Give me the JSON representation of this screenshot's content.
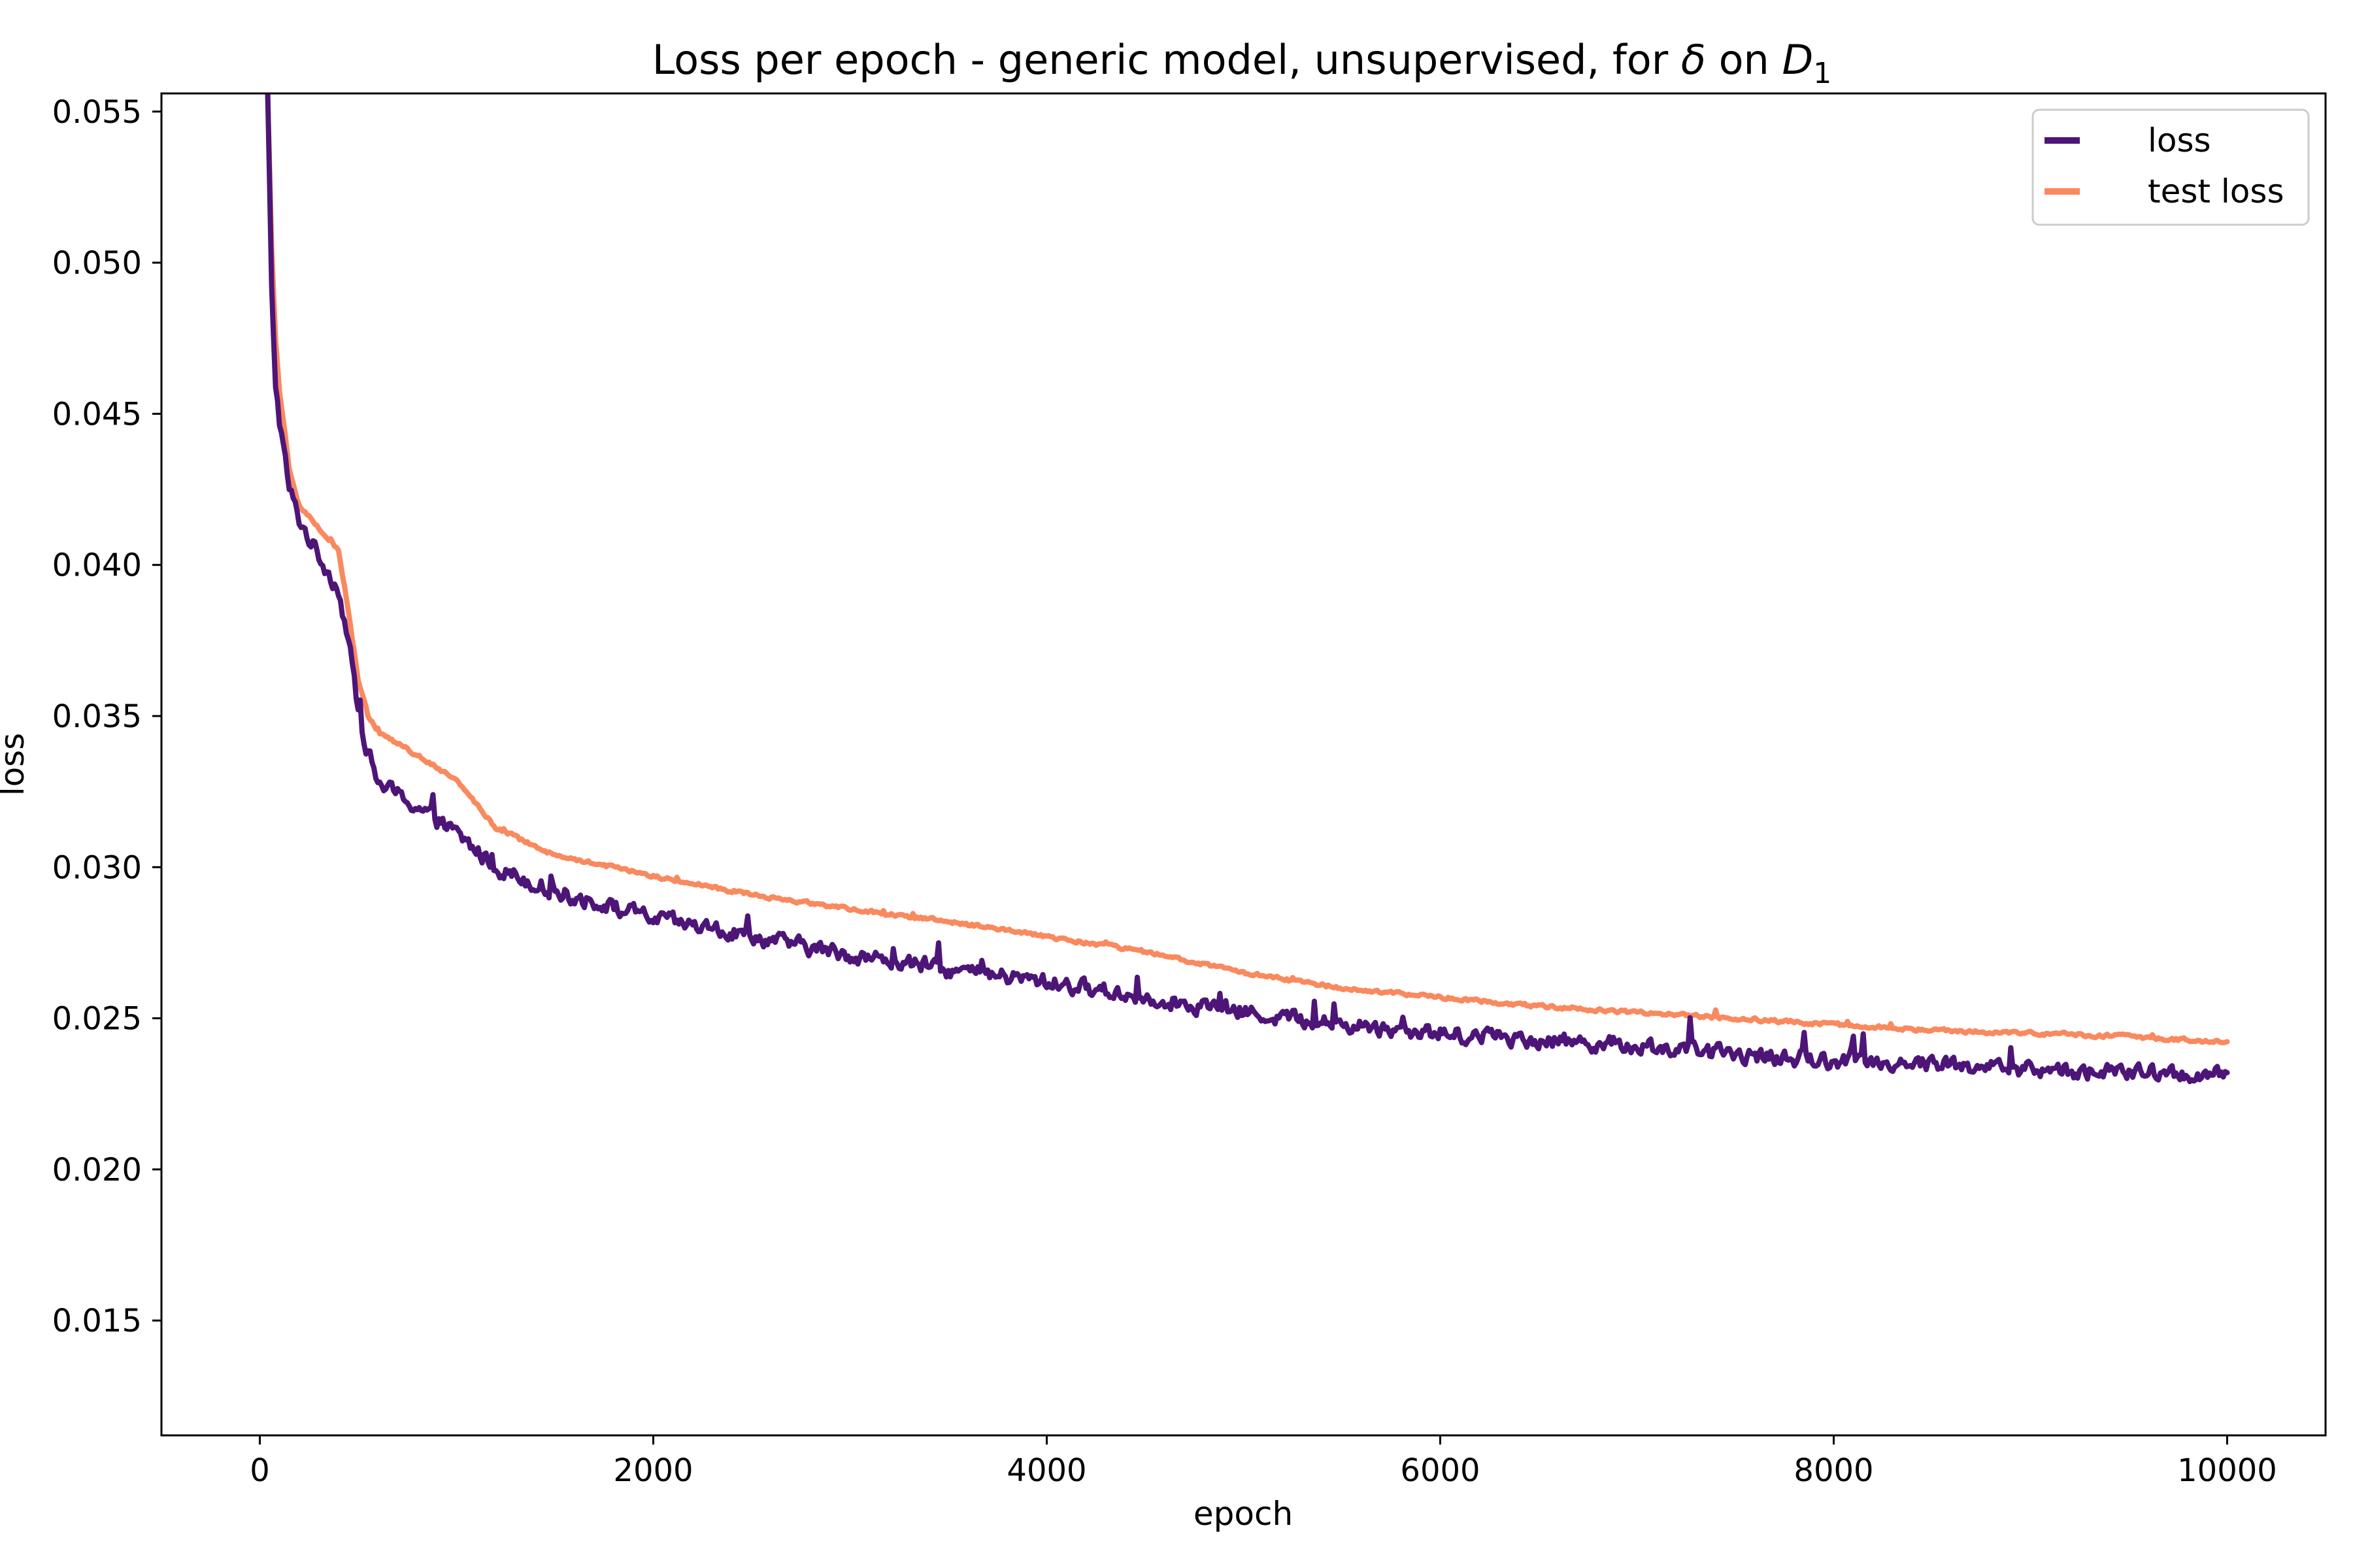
{
  "chart_data": {
    "type": "line",
    "title": "Loss per epoch - generic model, unsupervised, for δ on D",
    "title_subscript": "1",
    "xlabel": "epoch",
    "ylabel": "loss",
    "xlim": [
      -500,
      10500
    ],
    "ylim": [
      0.0112,
      0.0556
    ],
    "xticks": [
      0,
      2000,
      4000,
      6000,
      8000,
      10000
    ],
    "xtick_labels": [
      "0",
      "2000",
      "4000",
      "6000",
      "8000",
      "10000"
    ],
    "yticks": [
      0.015,
      0.02,
      0.025,
      0.03,
      0.035,
      0.04,
      0.045,
      0.05,
      0.055
    ],
    "ytick_labels": [
      "0.015",
      "0.020",
      "0.025",
      "0.030",
      "0.035",
      "0.040",
      "0.045",
      "0.050",
      "0.055"
    ],
    "grid": false,
    "legend_position": "top-right",
    "series": [
      {
        "name": "loss",
        "color": "#4e1578",
        "noise": 0.00042,
        "x": [
          40,
          60,
          80,
          100,
          150,
          200,
          300,
          400,
          450,
          500,
          550,
          600,
          800,
          1000,
          1200,
          1500,
          2000,
          2500,
          3000,
          3500,
          4000,
          4500,
          5000,
          5500,
          6000,
          6500,
          7000,
          7500,
          8000,
          8500,
          9000,
          9500,
          10000
        ],
        "y": [
          0.0556,
          0.049,
          0.046,
          0.0448,
          0.0425,
          0.0415,
          0.0403,
          0.0392,
          0.0375,
          0.0352,
          0.0338,
          0.0328,
          0.032,
          0.0311,
          0.03,
          0.0292,
          0.0283,
          0.0277,
          0.0271,
          0.0266,
          0.0262,
          0.0257,
          0.0252,
          0.0248,
          0.0245,
          0.0243,
          0.0241,
          0.0238,
          0.0236,
          0.0235,
          0.0233,
          0.0232,
          0.0231
        ]
      },
      {
        "name": "test loss",
        "color": "#f9895e",
        "noise": 9e-05,
        "x": [
          40,
          60,
          80,
          100,
          150,
          200,
          300,
          400,
          450,
          500,
          550,
          600,
          800,
          1000,
          1200,
          1500,
          2000,
          2500,
          3000,
          3500,
          4000,
          4500,
          5000,
          5500,
          6000,
          6500,
          7000,
          7500,
          8000,
          8500,
          9000,
          9500,
          10000
        ],
        "y": [
          0.0556,
          0.0505,
          0.0475,
          0.0458,
          0.0432,
          0.042,
          0.0412,
          0.0405,
          0.0385,
          0.0362,
          0.035,
          0.0345,
          0.0337,
          0.0329,
          0.0313,
          0.0304,
          0.0297,
          0.0291,
          0.0286,
          0.0282,
          0.0277,
          0.0272,
          0.0265,
          0.026,
          0.0257,
          0.0254,
          0.0252,
          0.025,
          0.0248,
          0.0246,
          0.0245,
          0.0244,
          0.0242
        ]
      }
    ]
  }
}
